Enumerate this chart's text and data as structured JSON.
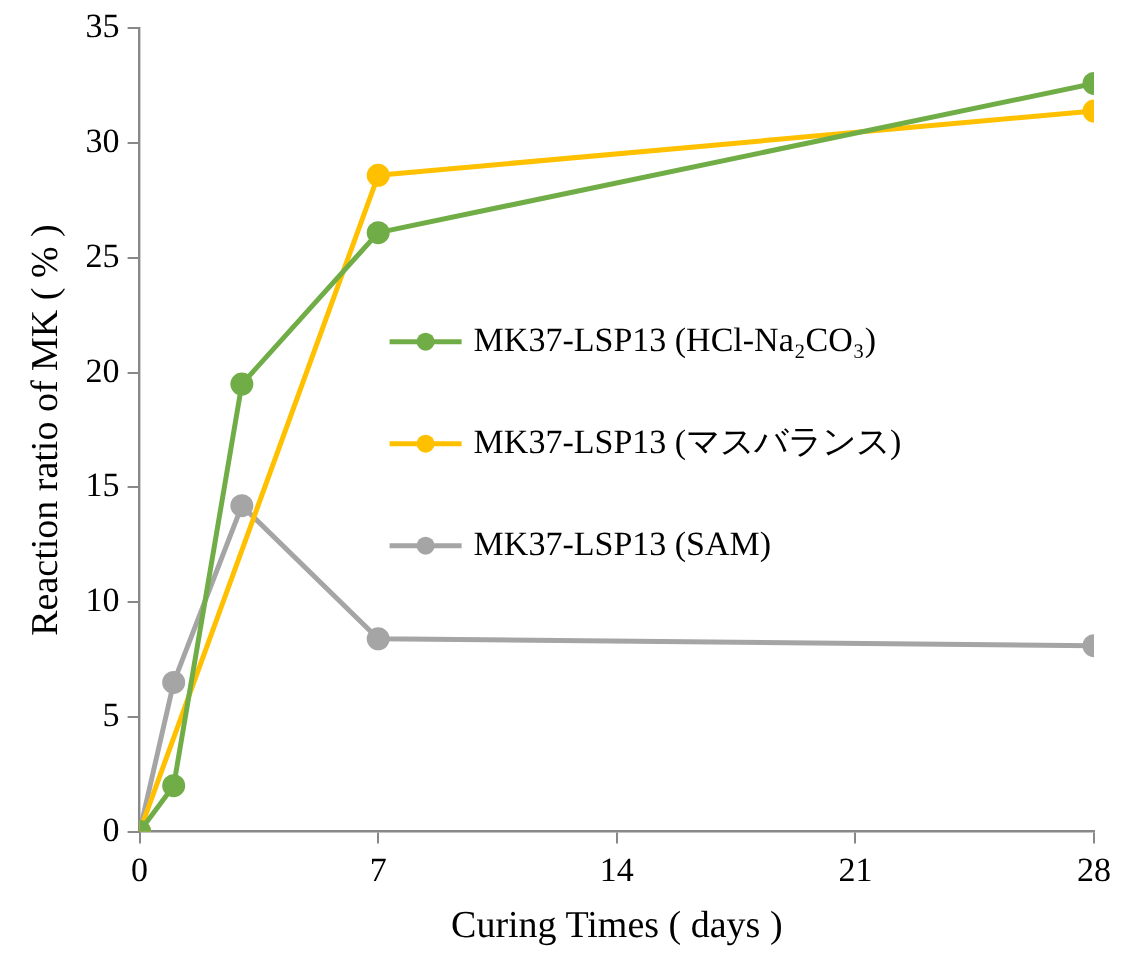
{
  "chart_data": {
    "type": "line",
    "xlabel": "Curing Times ( days )",
    "ylabel": "Reaction ratio of MK ( % )",
    "xlim": [
      0,
      28
    ],
    "xticks": [
      0,
      7,
      14,
      21,
      28
    ],
    "ylim": [
      0,
      35
    ],
    "yticks": [
      0,
      5,
      10,
      15,
      20,
      25,
      30,
      35
    ],
    "grid": false,
    "legend": "left",
    "marker": "circle",
    "line_style": "solid",
    "series": [
      {
        "name": "MK37-LSP13 (HCl-Na₂CO₃)",
        "color": "#70ad47",
        "x": [
          0,
          1,
          3,
          7,
          28
        ],
        "values": [
          0,
          2,
          19.5,
          26.1,
          32.6
        ]
      },
      {
        "name": "MK37-LSP13 (マスバランス)",
        "color": "#ffc000",
        "x": [
          0,
          7,
          28
        ],
        "values": [
          0,
          28.6,
          31.4
        ]
      },
      {
        "name": "MK37-LSP13 (SAM)",
        "color": "#a5a5a5",
        "x": [
          0,
          1,
          3,
          7,
          28
        ],
        "values": [
          0,
          6.5,
          14.2,
          8.4,
          8.1
        ]
      }
    ]
  }
}
